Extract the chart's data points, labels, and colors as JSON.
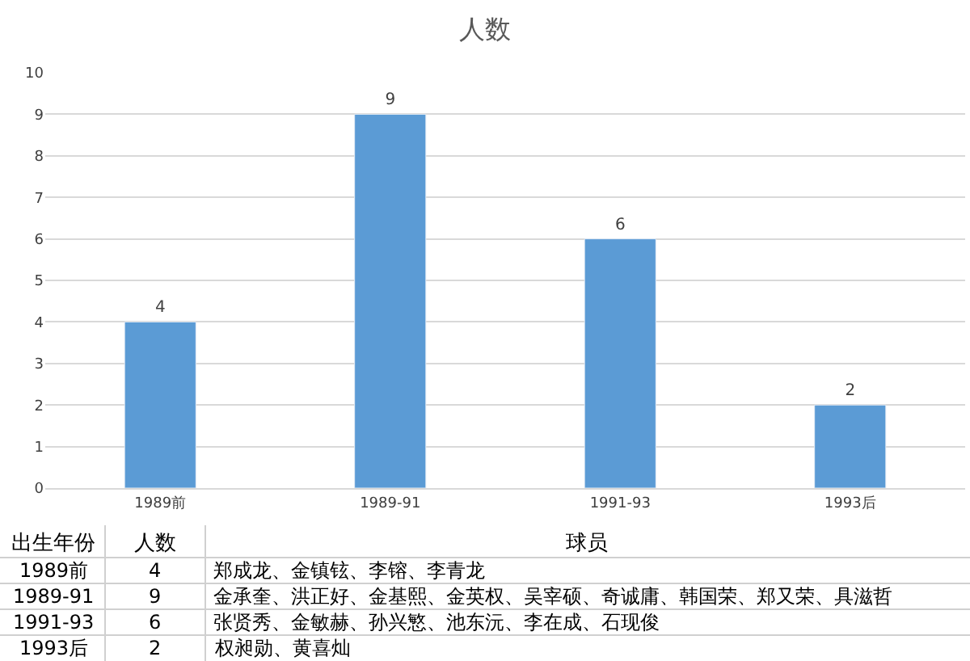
{
  "chart_data": {
    "type": "bar",
    "title": "人数",
    "categories": [
      "1989前",
      "1989-91",
      "1991-93",
      "1993后"
    ],
    "values": [
      4,
      9,
      6,
      2
    ],
    "color": "#5b9bd5",
    "ylim": [
      0,
      10
    ],
    "yticks": [
      0,
      1,
      2,
      3,
      4,
      5,
      6,
      7,
      8,
      9,
      10
    ],
    "grid": "y",
    "data_labels": true,
    "annotations": [
      "出生年份",
      "人数",
      "球员",
      "1989前",
      "4",
      "郑成龙、金镇铉、李镕、李青龙",
      "1989-91",
      "9",
      "金承奎、洪正好、金基熙、金英权、吴宰硕、奇诚庸、韩国荣、郑又荣、具滋哲",
      "1991-93",
      "6",
      "张贤秀、金敏赫、孙兴慜、池东沅、李在成、石现俊",
      "1993后",
      "2",
      "权昶勋、黄喜灿"
    ]
  }
}
